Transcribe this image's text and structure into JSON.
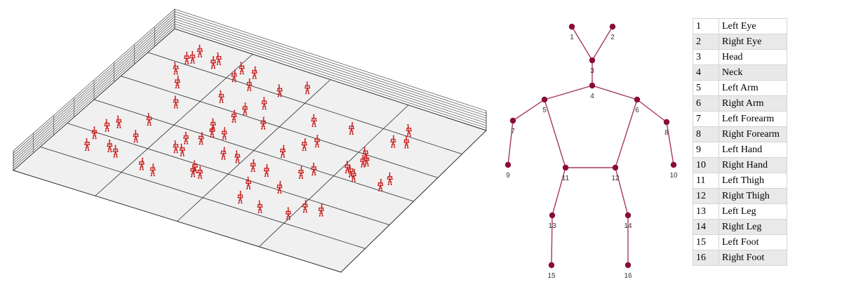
{
  "joints": [
    {
      "id": "1",
      "name": "Left Eye"
    },
    {
      "id": "2",
      "name": "Right Eye"
    },
    {
      "id": "3",
      "name": "Head"
    },
    {
      "id": "4",
      "name": "Neck"
    },
    {
      "id": "5",
      "name": "Left Arm"
    },
    {
      "id": "6",
      "name": "Right Arm"
    },
    {
      "id": "7",
      "name": "Left Forearm"
    },
    {
      "id": "8",
      "name": "Right Forearm"
    },
    {
      "id": "9",
      "name": "Left Hand"
    },
    {
      "id": "10",
      "name": "Right Hand"
    },
    {
      "id": "11",
      "name": "Left Thigh"
    },
    {
      "id": "12",
      "name": "Right Thigh"
    },
    {
      "id": "13",
      "name": "Left Leg"
    },
    {
      "id": "14",
      "name": "Right Leg"
    },
    {
      "id": "15",
      "name": "Left Foot"
    },
    {
      "id": "16",
      "name": "Right Foot"
    }
  ],
  "bones": [
    [
      "1",
      "3"
    ],
    [
      "2",
      "3"
    ],
    [
      "3",
      "4"
    ],
    [
      "4",
      "5"
    ],
    [
      "4",
      "6"
    ],
    [
      "5",
      "7"
    ],
    [
      "7",
      "9"
    ],
    [
      "6",
      "8"
    ],
    [
      "8",
      "10"
    ],
    [
      "5",
      "11"
    ],
    [
      "6",
      "12"
    ],
    [
      "11",
      "12"
    ],
    [
      "11",
      "13"
    ],
    [
      "13",
      "15"
    ],
    [
      "12",
      "14"
    ],
    [
      "14",
      "16"
    ]
  ],
  "colors": {
    "skeleton_line": "#a83a55",
    "skeleton_node": "#8a0d33",
    "people": "#c81e1e",
    "floor": "#f0f0f0",
    "grid": "#2a2a2a"
  },
  "crowd_count": 68
}
